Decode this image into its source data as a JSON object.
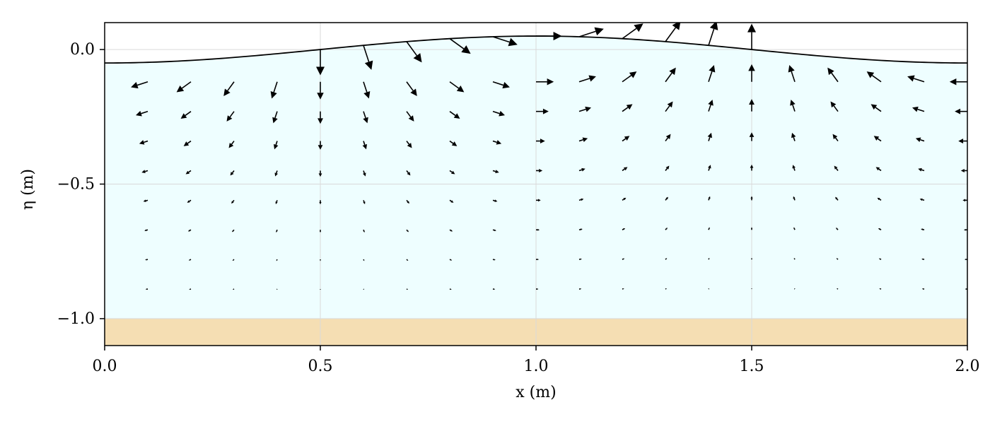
{
  "chart_data": {
    "type": "quiver",
    "title": "",
    "xlabel": "x (m)",
    "ylabel": "η (m)",
    "xlim": [
      0.0,
      2.0
    ],
    "ylim": [
      -1.1,
      0.1
    ],
    "grid": true,
    "x_ticks": [
      0.0,
      0.5,
      1.0,
      1.5,
      2.0
    ],
    "x_tick_labels": [
      "0.0",
      "0.5",
      "1.0",
      "1.5",
      "2.0"
    ],
    "y_ticks": [
      0.0,
      -0.5,
      -1.0
    ],
    "y_tick_labels": [
      "0.0",
      "−0.5",
      "−1.0"
    ],
    "colors": {
      "water": "#eefeff",
      "sand": "#f5deb3",
      "surface_line": "#000000",
      "arrow": "#000000",
      "grid": "#d9d9d9"
    },
    "surface": {
      "wave_amplitude": 0.05,
      "wavelength": 2.0,
      "crest_x": 1.0
    },
    "sea_floor": -1.0,
    "velocity_field": {
      "x_positions": [
        0.1,
        0.2,
        0.3,
        0.4,
        0.5,
        0.6,
        0.7,
        0.8,
        0.9,
        1.0,
        1.1,
        1.2,
        1.3,
        1.4,
        1.5,
        1.6,
        1.7,
        1.8,
        1.9,
        2.0
      ],
      "depths": [
        -0.12,
        -0.23,
        -0.34,
        -0.45,
        -0.56,
        -0.67,
        -0.78,
        -0.89
      ],
      "max_speed": 0.06
    }
  }
}
